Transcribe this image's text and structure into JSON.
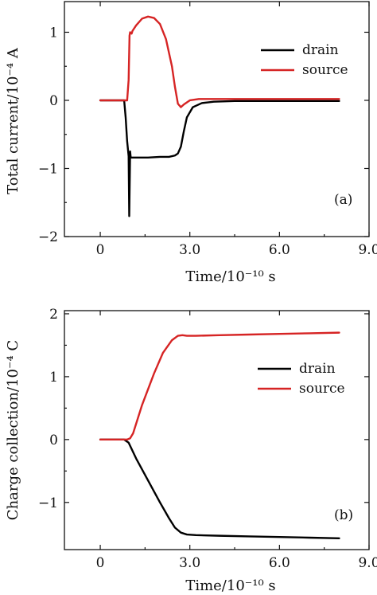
{
  "chart_data": [
    {
      "type": "line",
      "panel_label": "(a)",
      "xlabel": "Time/10⁻¹⁰ s",
      "ylabel": "Total current/10⁻⁴ A",
      "xlim": [
        -1.2,
        9.0
      ],
      "ylim": [
        -2.0,
        1.45
      ],
      "x_ticks": [
        0,
        3.0,
        6.0,
        9.0
      ],
      "x_tick_labels": [
        "0",
        "3.0",
        "6.0",
        "9.0"
      ],
      "y_ticks": [
        -2,
        -1,
        0,
        1
      ],
      "y_tick_labels": [
        "−2",
        "−1",
        "0",
        "1"
      ],
      "legend_position": "top-right",
      "grid": false,
      "series": [
        {
          "name": "drain",
          "color": "#000000",
          "x": [
            0,
            0.8,
            0.85,
            0.9,
            0.95,
            0.97,
            1.0,
            1.02,
            1.05,
            1.2,
            1.6,
            2.0,
            2.3,
            2.5,
            2.6,
            2.7,
            2.8,
            2.9,
            3.1,
            3.4,
            3.8,
            4.5,
            6.0,
            8.0
          ],
          "y": [
            0,
            0,
            -0.25,
            -0.6,
            -0.82,
            -1.7,
            -0.75,
            -0.84,
            -0.84,
            -0.84,
            -0.84,
            -0.83,
            -0.83,
            -0.81,
            -0.78,
            -0.68,
            -0.45,
            -0.25,
            -0.1,
            -0.04,
            -0.02,
            -0.01,
            -0.01,
            -0.01
          ]
        },
        {
          "name": "source",
          "color": "#d62424",
          "x": [
            0,
            0.85,
            0.9,
            0.95,
            0.98,
            1.0,
            1.05,
            1.08,
            1.2,
            1.4,
            1.6,
            1.8,
            2.0,
            2.2,
            2.4,
            2.5,
            2.6,
            2.7,
            2.8,
            3.0,
            3.3,
            4.0,
            6.0,
            8.0
          ],
          "y": [
            0,
            0,
            0.0,
            0.3,
            0.95,
            1.0,
            0.98,
            1.02,
            1.1,
            1.2,
            1.23,
            1.21,
            1.12,
            0.9,
            0.5,
            0.2,
            -0.05,
            -0.1,
            -0.06,
            0.0,
            0.02,
            0.02,
            0.02,
            0.02
          ]
        }
      ]
    },
    {
      "type": "line",
      "panel_label": "(b)",
      "xlabel": "Time/10⁻¹⁰ s",
      "ylabel": "Charge collection/10⁻⁴ C",
      "xlim": [
        -1.2,
        9.0
      ],
      "ylim": [
        -1.75,
        2.05
      ],
      "x_ticks": [
        0,
        3.0,
        6.0,
        9.0
      ],
      "x_tick_labels": [
        "0",
        "3.0",
        "6.0",
        "9.0"
      ],
      "y_ticks": [
        -1,
        0,
        1,
        2
      ],
      "y_tick_labels": [
        "−1",
        "0",
        "1",
        "2"
      ],
      "legend_position": "top-right",
      "grid": false,
      "series": [
        {
          "name": "drain",
          "color": "#000000",
          "x": [
            0,
            0.8,
            0.95,
            1.2,
            1.6,
            2.0,
            2.3,
            2.5,
            2.7,
            2.9,
            3.2,
            4.0,
            5.0,
            6.0,
            7.0,
            8.0
          ],
          "y": [
            0,
            0,
            -0.05,
            -0.3,
            -0.65,
            -1.0,
            -1.25,
            -1.4,
            -1.48,
            -1.51,
            -1.52,
            -1.53,
            -1.54,
            -1.55,
            -1.56,
            -1.57
          ],
          "color_dummy": null
        },
        {
          "name": "source",
          "color": "#d62424",
          "x": [
            0,
            0.9,
            1.0,
            1.1,
            1.4,
            1.8,
            2.1,
            2.4,
            2.6,
            2.75,
            2.9,
            3.2,
            4.0,
            5.0,
            6.0,
            7.0,
            8.0
          ],
          "y": [
            0,
            0,
            0.02,
            0.1,
            0.55,
            1.05,
            1.38,
            1.58,
            1.65,
            1.66,
            1.65,
            1.65,
            1.66,
            1.67,
            1.68,
            1.69,
            1.7
          ]
        }
      ]
    }
  ]
}
